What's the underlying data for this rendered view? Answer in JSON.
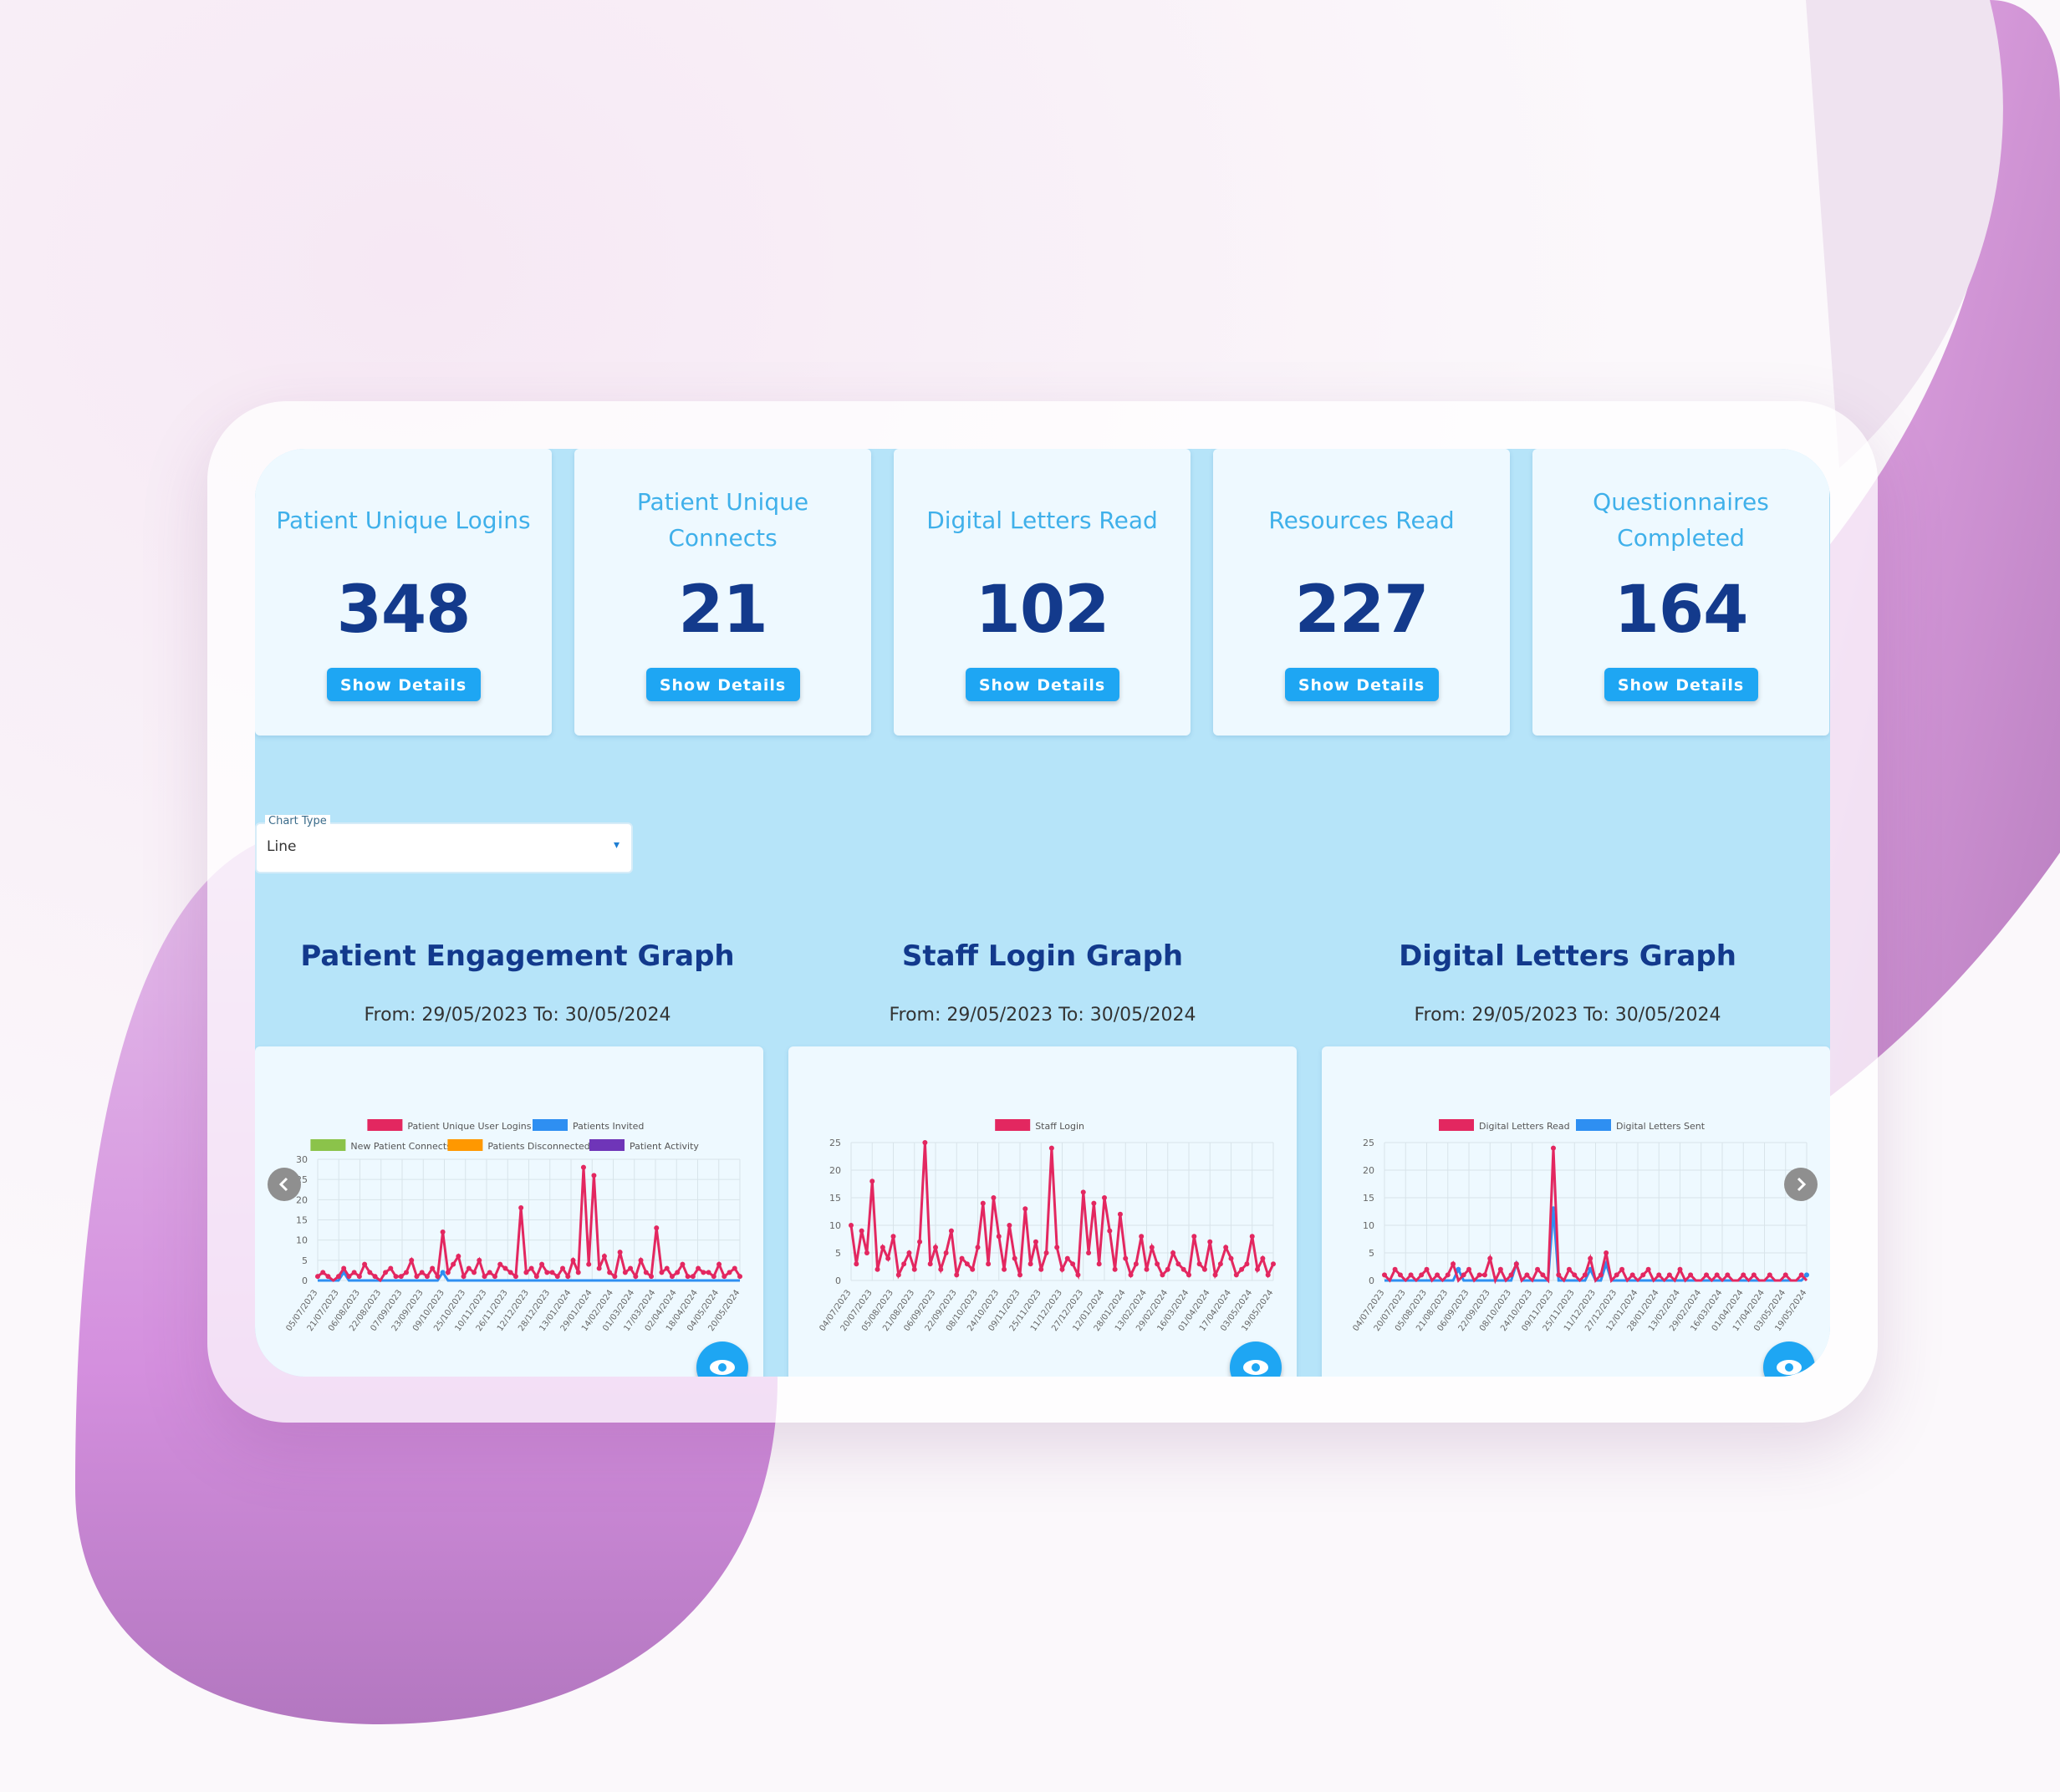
{
  "cards": [
    {
      "title": "Patient Unique Logins",
      "value": "348",
      "button": "Show Details"
    },
    {
      "title": "Patient Unique Connects",
      "value": "21",
      "button": "Show Details"
    },
    {
      "title": "Digital Letters Read",
      "value": "102",
      "button": "Show Details"
    },
    {
      "title": "Resources Read",
      "value": "227",
      "button": "Show Details"
    },
    {
      "title": "Questionnaires Completed",
      "value": "164",
      "button": "Show Details"
    }
  ],
  "chart_type_select": {
    "label": "Chart Type",
    "value": "Line"
  },
  "graphs": [
    {
      "title": "Patient Engagement Graph",
      "range": "From: 29/05/2023 To: 30/05/2024"
    },
    {
      "title": "Staff Login Graph",
      "range": "From: 29/05/2023 To: 30/05/2024"
    },
    {
      "title": "Digital Letters Graph",
      "range": "From: 29/05/2023 To: 30/05/2024"
    }
  ],
  "chart_data": [
    {
      "type": "line",
      "legend": [
        "Patient Unique User Logins",
        "Patients Invited",
        "New Patient Connects",
        "Patients Disconnected",
        "Patient Activity"
      ],
      "colors": [
        "#e32760",
        "#2e8ff2",
        "#8bc34a",
        "#ff9800",
        "#6f35b8"
      ],
      "yticks": [
        "30",
        "25",
        "20",
        "15",
        "10",
        "5",
        "0"
      ],
      "ylim": [
        0,
        30
      ],
      "xticks": [
        "05/07/2023",
        "21/07/2023",
        "06/08/2023",
        "22/08/2023",
        "07/09/2023",
        "23/09/2023",
        "09/10/2023",
        "25/10/2023",
        "10/11/2023",
        "26/11/2023",
        "12/12/2023",
        "28/12/2023",
        "13/01/2024",
        "29/01/2024",
        "14/02/2024",
        "01/03/2024",
        "17/03/2024",
        "02/04/2024",
        "18/04/2024",
        "04/05/2024",
        "20/05/2024"
      ],
      "series": [
        {
          "name": "Patient Unique User Logins",
          "values": [
            1,
            2,
            1,
            0,
            1,
            3,
            1,
            2,
            1,
            4,
            2,
            1,
            0,
            2,
            3,
            1,
            1,
            2,
            5,
            1,
            2,
            1,
            3,
            1,
            12,
            2,
            4,
            6,
            1,
            3,
            2,
            5,
            1,
            2,
            1,
            4,
            3,
            2,
            1,
            18,
            2,
            3,
            1,
            4,
            2,
            2,
            1,
            3,
            1,
            5,
            2,
            28,
            4,
            26,
            3,
            6,
            2,
            1,
            7,
            2,
            3,
            1,
            5,
            2,
            1,
            13,
            2,
            3,
            1,
            2,
            4,
            1,
            1,
            3,
            2,
            2,
            1,
            4,
            1,
            2,
            3,
            1
          ]
        },
        {
          "name": "Patients Invited",
          "values": [
            0,
            0,
            0,
            0,
            0,
            2,
            0,
            0,
            0,
            0,
            0,
            0,
            0,
            0,
            0,
            0,
            0,
            0,
            0,
            0,
            0,
            0,
            0,
            0,
            2,
            0,
            0,
            0,
            0,
            0,
            0,
            0,
            0,
            0,
            0,
            0,
            0,
            0,
            0,
            0,
            0,
            0,
            0,
            0,
            0,
            0,
            0,
            0,
            0,
            0,
            0,
            0,
            0,
            0,
            0,
            0,
            0,
            0,
            0,
            0,
            0,
            0,
            0,
            0,
            0,
            0,
            0,
            0,
            0,
            0,
            0,
            0,
            0,
            0,
            0,
            0,
            0,
            0,
            0,
            0,
            0,
            0
          ]
        }
      ]
    },
    {
      "type": "line",
      "legend": [
        "Staff Login"
      ],
      "colors": [
        "#e32760"
      ],
      "yticks": [
        "25",
        "20",
        "15",
        "10",
        "5",
        "0"
      ],
      "ylim": [
        0,
        25
      ],
      "xticks": [
        "04/07/2023",
        "20/07/2023",
        "05/08/2023",
        "21/08/2023",
        "06/09/2023",
        "22/09/2023",
        "08/10/2023",
        "24/10/2023",
        "09/11/2023",
        "25/11/2023",
        "11/12/2023",
        "27/12/2023",
        "12/01/2024",
        "28/01/2024",
        "13/02/2024",
        "29/02/2024",
        "16/03/2024",
        "01/04/2024",
        "17/04/2024",
        "03/05/2024",
        "19/05/2024"
      ],
      "series": [
        {
          "name": "Staff Login",
          "values": [
            10,
            3,
            9,
            5,
            18,
            2,
            6,
            4,
            8,
            1,
            3,
            5,
            2,
            7,
            25,
            3,
            6,
            2,
            5,
            9,
            1,
            4,
            3,
            2,
            6,
            14,
            3,
            15,
            8,
            2,
            10,
            4,
            1,
            13,
            3,
            7,
            2,
            5,
            24,
            6,
            2,
            4,
            3,
            1,
            16,
            5,
            14,
            3,
            15,
            9,
            2,
            12,
            4,
            1,
            3,
            8,
            2,
            6,
            3,
            1,
            2,
            5,
            3,
            2,
            1,
            8,
            3,
            2,
            7,
            1,
            3,
            6,
            4,
            1,
            2,
            3,
            8,
            2,
            4,
            1,
            3
          ]
        }
      ]
    },
    {
      "type": "line",
      "legend": [
        "Digital Letters Read",
        "Digital Letters Sent"
      ],
      "colors": [
        "#e32760",
        "#2e8ff2"
      ],
      "yticks": [
        "25",
        "20",
        "15",
        "10",
        "5",
        "0"
      ],
      "ylim": [
        0,
        25
      ],
      "xticks": [
        "04/07/2023",
        "20/07/2023",
        "05/08/2023",
        "21/08/2023",
        "06/09/2023",
        "22/09/2023",
        "08/10/2023",
        "24/10/2023",
        "09/11/2023",
        "25/11/2023",
        "11/12/2023",
        "27/12/2023",
        "12/01/2024",
        "28/01/2024",
        "13/02/2024",
        "29/02/2024",
        "16/03/2024",
        "01/04/2024",
        "17/04/2024",
        "03/05/2024",
        "19/05/2024"
      ],
      "series": [
        {
          "name": "Digital Letters Read",
          "values": [
            1,
            0,
            2,
            1,
            0,
            1,
            0,
            1,
            2,
            0,
            1,
            0,
            1,
            3,
            0,
            1,
            2,
            0,
            1,
            1,
            4,
            0,
            2,
            0,
            1,
            3,
            0,
            1,
            0,
            2,
            1,
            0,
            24,
            1,
            0,
            2,
            1,
            0,
            1,
            4,
            0,
            1,
            5,
            0,
            1,
            2,
            0,
            1,
            0,
            1,
            2,
            0,
            1,
            0,
            1,
            0,
            2,
            0,
            1,
            0,
            0,
            1,
            0,
            1,
            0,
            1,
            0,
            0,
            1,
            0,
            1,
            0,
            0,
            1,
            0,
            0,
            1,
            0,
            0,
            1,
            0
          ]
        },
        {
          "name": "Digital Letters Sent",
          "values": [
            0,
            0,
            0,
            0,
            0,
            0,
            0,
            0,
            0,
            0,
            0,
            0,
            0,
            0,
            2,
            0,
            0,
            0,
            0,
            0,
            0,
            0,
            0,
            0,
            0,
            3,
            0,
            0,
            0,
            0,
            0,
            0,
            13,
            0,
            0,
            0,
            0,
            0,
            0,
            2,
            0,
            0,
            3,
            0,
            0,
            0,
            0,
            0,
            0,
            0,
            0,
            0,
            0,
            0,
            0,
            0,
            0,
            0,
            0,
            0,
            0,
            0,
            0,
            0,
            0,
            0,
            0,
            0,
            0,
            0,
            0,
            0,
            0,
            0,
            0,
            0,
            0,
            0,
            0,
            0,
            1
          ]
        }
      ]
    }
  ]
}
